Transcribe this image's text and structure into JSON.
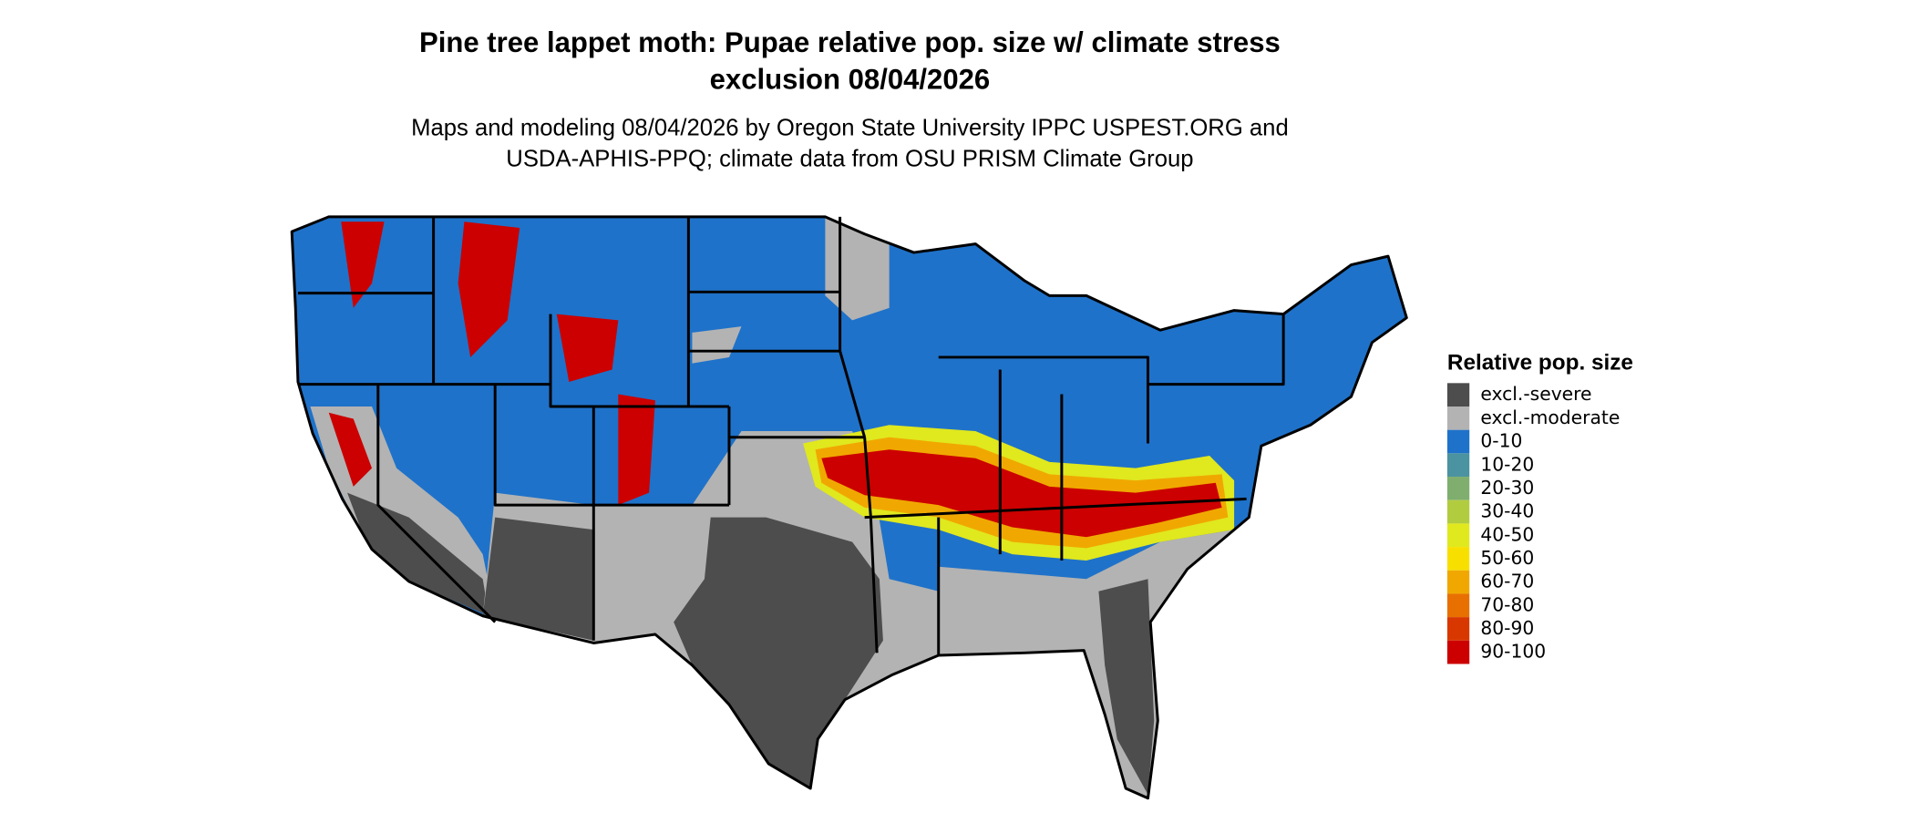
{
  "title_lines": [
    "Pine tree lappet moth: Pupae relative pop. size w/ climate stress",
    "exclusion 08/04/2026"
  ],
  "subtitle_lines": [
    "Maps and modeling 08/04/2026 by Oregon State University IPPC USPEST.ORG and",
    "USDA-APHIS-PPQ; climate data from OSU PRISM Climate Group"
  ],
  "legend": {
    "title": "Relative pop. size",
    "items": [
      {
        "label": "excl.-severe",
        "color": "#4d4d4d"
      },
      {
        "label": "excl.-moderate",
        "color": "#b3b3b3"
      },
      {
        "label": "0-10",
        "color": "#1f72c9"
      },
      {
        "label": "10-20",
        "color": "#4b93a0"
      },
      {
        "label": "20-30",
        "color": "#7fae6e"
      },
      {
        "label": "30-40",
        "color": "#b2cc40"
      },
      {
        "label": "40-50",
        "color": "#e0e81e"
      },
      {
        "label": "50-60",
        "color": "#f7e000"
      },
      {
        "label": "60-70",
        "color": "#f0a800"
      },
      {
        "label": "70-80",
        "color": "#e87000"
      },
      {
        "label": "80-90",
        "color": "#d83800"
      },
      {
        "label": "90-100",
        "color": "#cc0000"
      }
    ]
  }
}
